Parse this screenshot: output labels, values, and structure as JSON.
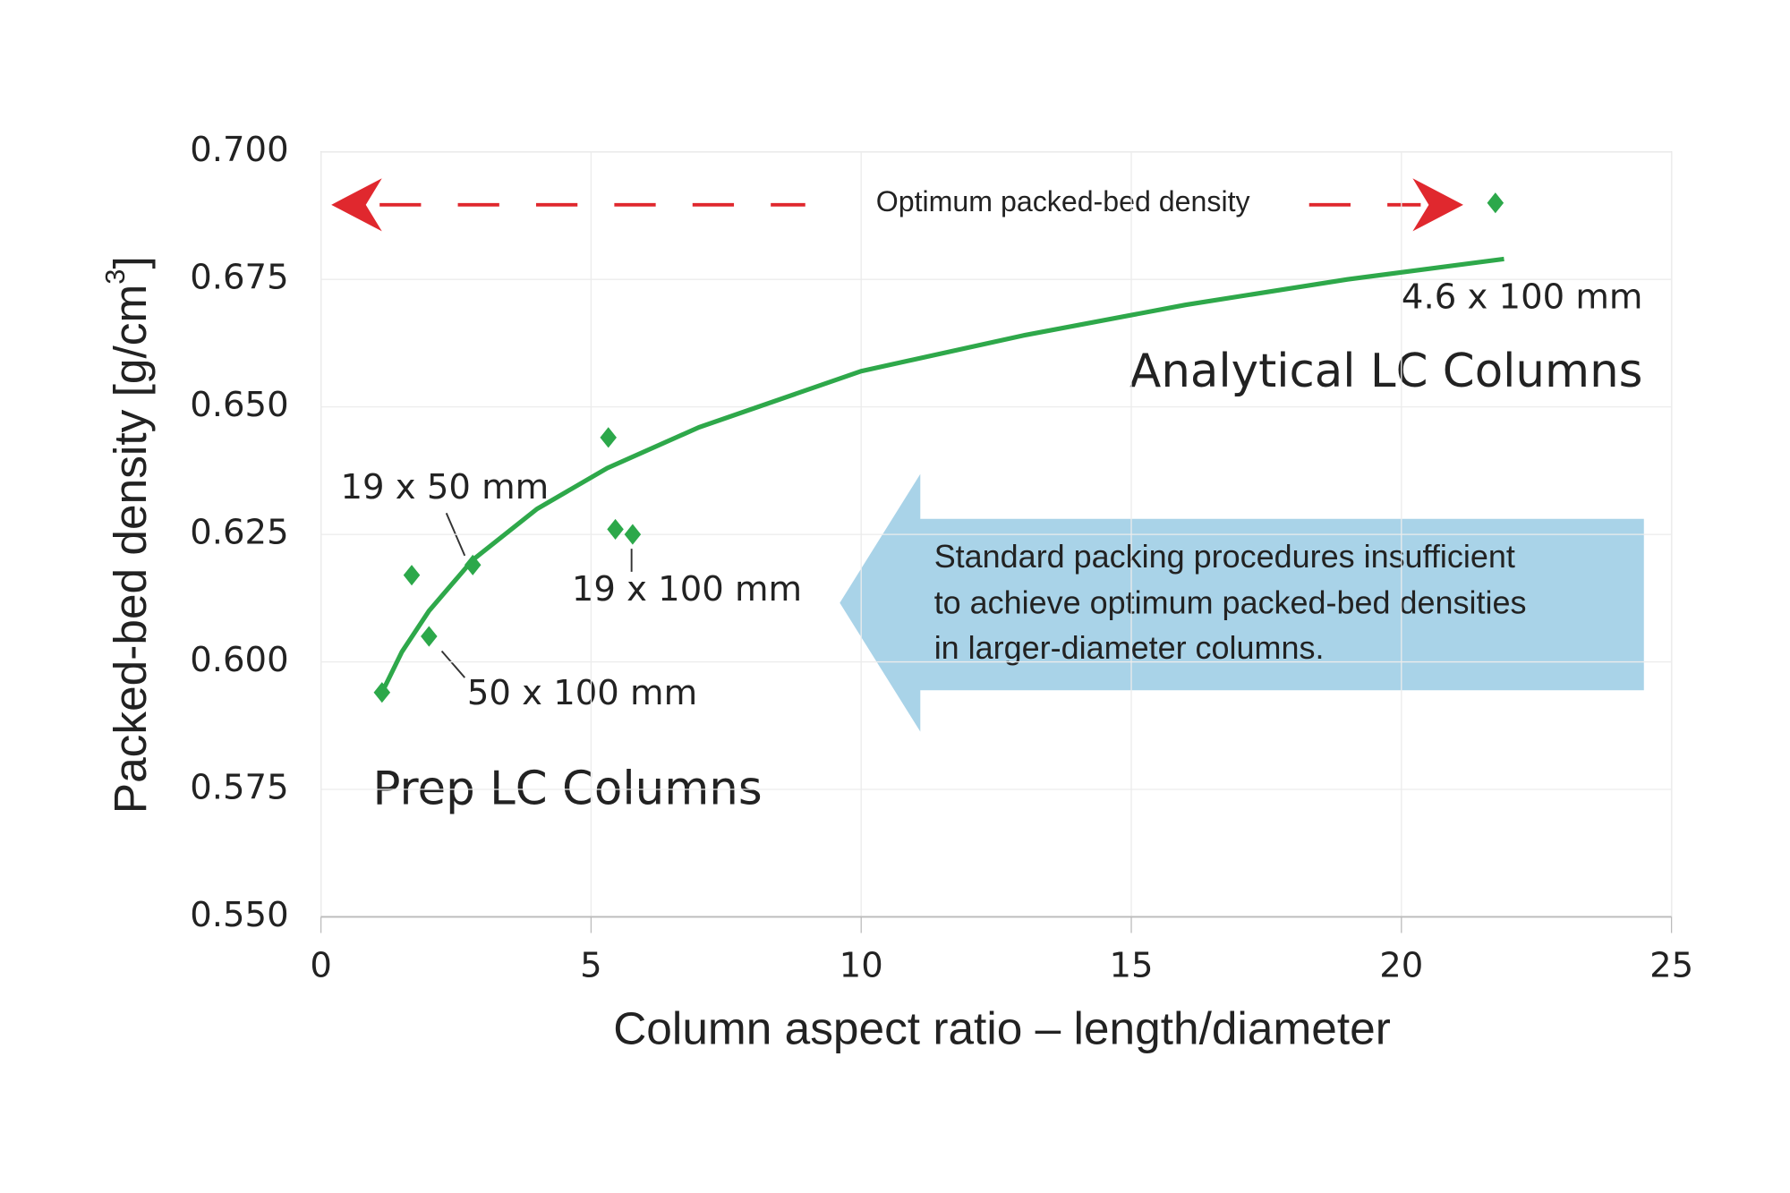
{
  "chart_data": {
    "type": "scatter",
    "x_label": "Column aspect ratio – length/diameter",
    "y_label": {
      "text": "Packed-bed density [g/cm",
      "sup": "3",
      "end": "]"
    },
    "xlim": [
      0,
      25
    ],
    "xticks": [
      0,
      5,
      10,
      15,
      20,
      25
    ],
    "ylim": [
      0.55,
      0.7
    ],
    "yticks": [
      {
        "value": 0.55,
        "label": "0.550"
      },
      {
        "value": 0.575,
        "label": "0.575"
      },
      {
        "value": 0.6,
        "label": "0.600"
      },
      {
        "value": 0.625,
        "label": "0.625"
      },
      {
        "value": 0.65,
        "label": "0.650"
      },
      {
        "value": 0.675,
        "label": "0.675"
      },
      {
        "value": 0.7,
        "label": "0.700"
      }
    ],
    "grid": true,
    "series": [
      {
        "type": "scatter",
        "color": "#2ca84a",
        "x": [
          1.13,
          1.68,
          2.0,
          2.81,
          5.32,
          5.45,
          5.77,
          21.74
        ],
        "values": [
          0.594,
          0.617,
          0.605,
          0.619,
          0.644,
          0.626,
          0.625,
          0.69
        ]
      },
      {
        "type": "line",
        "color": "#2ea84a",
        "x": [
          1.13,
          1.5,
          2,
          2.81,
          4,
          5.3,
          7,
          10,
          13,
          16,
          19,
          21.9
        ],
        "values": [
          0.594,
          0.602,
          0.61,
          0.62,
          0.63,
          0.638,
          0.646,
          0.657,
          0.664,
          0.67,
          0.675,
          0.679
        ]
      }
    ],
    "annotations": {
      "optimum": "Optimum packed-bed density",
      "analytical_size": "4.6 x 100 mm",
      "analytical": "Analytical LC Columns",
      "size_19x50": "19 x 50 mm",
      "size_19x100": "19 x 100 mm",
      "size_50x100": "50 x 100 mm",
      "prep": "Prep LC Columns",
      "callout": [
        "Standard packing procedures insufficient",
        "to achieve optimum packed-bed densities",
        "in larger-diameter columns."
      ]
    }
  }
}
